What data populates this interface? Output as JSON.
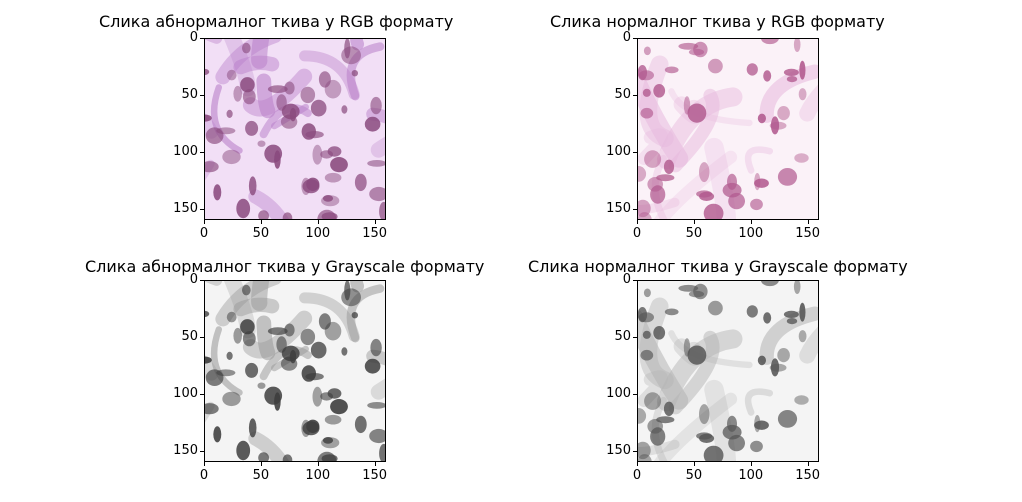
{
  "figure": {
    "panels": [
      {
        "title": "Слика абнормалног ткива у RGB формату",
        "mode": "rgb-abnormal"
      },
      {
        "title": "Слика нормалног ткива у RGB формату",
        "mode": "rgb-normal"
      },
      {
        "title": "Слика абнормалног ткива у Grayscale формату",
        "mode": "gray-abnormal"
      },
      {
        "title": "Слика нормалног ткива у Grayscale формату",
        "mode": "gray-normal"
      }
    ],
    "axes": {
      "xticks": [
        "0",
        "50",
        "100",
        "150"
      ],
      "yticks": [
        "0",
        "50",
        "100",
        "150"
      ]
    },
    "colors": {
      "rgb_background": "#f2dff6",
      "rgb_abnormal_tint": "#b87ec9",
      "rgb_normal_tint": "#e7b8dd",
      "gray_background": "#f4f4f4"
    }
  }
}
